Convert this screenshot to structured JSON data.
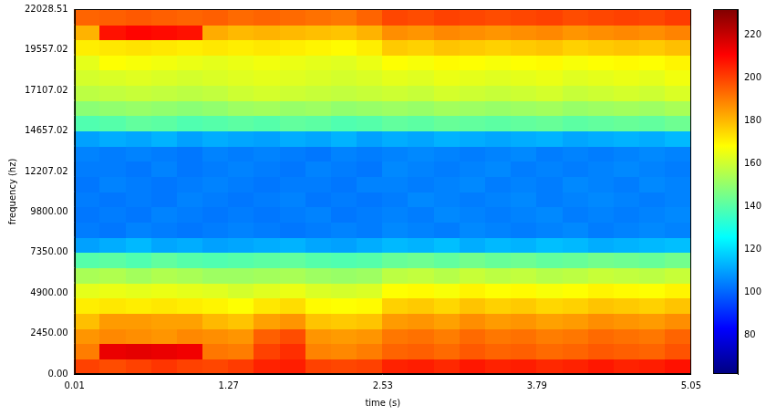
{
  "chart_data": {
    "type": "heatmap",
    "xlabel": "time (s)",
    "ylabel": "frequency (hz)",
    "xlim": [
      0.01,
      5.05
    ],
    "ylim": [
      0,
      22028.51
    ],
    "xticks": [
      0.01,
      1.27,
      2.53,
      3.79,
      5.05
    ],
    "yticks": [
      {
        "value": 0,
        "label": "0.00"
      },
      {
        "value": 2450,
        "label": "2450.00"
      },
      {
        "value": 4900,
        "label": "4900.00"
      },
      {
        "value": 7350,
        "label": "7350.00"
      },
      {
        "value": 9800,
        "label": "9800.00"
      },
      {
        "value": 12207.02,
        "label": "12207.02"
      },
      {
        "value": 14657.02,
        "label": "14657.02"
      },
      {
        "value": 17107.02,
        "label": "17107.02"
      },
      {
        "value": 19557.02,
        "label": "19557.02"
      },
      {
        "value": 22028.51,
        "label": "22028.51"
      }
    ],
    "grid": false,
    "x_bins": [
      0.01,
      0.22,
      0.43,
      0.64,
      0.85,
      1.06,
      1.27,
      1.48,
      1.69,
      1.9,
      2.11,
      2.32,
      2.53,
      2.74,
      2.95,
      3.16,
      3.37,
      3.58,
      3.79,
      4.0,
      4.21,
      4.42,
      4.63,
      4.84,
      5.05
    ],
    "y_bins": [
      0,
      918,
      1836,
      2754,
      3672,
      4590,
      5508,
      6426,
      7344,
      8262,
      9180,
      10098,
      11016,
      11934,
      12852,
      13770,
      14688,
      15606,
      16524,
      17442,
      18360,
      19278,
      20196,
      21114,
      22028.51
    ],
    "cells": [
      [
        200,
        198,
        200,
        202,
        200,
        199,
        201,
        205,
        206,
        200,
        199,
        200,
        205,
        206,
        204,
        207,
        205,
        206,
        204,
        205,
        207,
        205,
        206,
        208
      ],
      [
        190,
        214,
        215,
        214,
        213,
        191,
        190,
        200,
        203,
        189,
        188,
        190,
        194,
        195,
        193,
        196,
        194,
        195,
        193,
        194,
        196,
        195,
        194,
        197
      ],
      [
        186,
        188,
        187,
        186,
        188,
        187,
        186,
        195,
        198,
        186,
        185,
        186,
        191,
        192,
        190,
        193,
        191,
        192,
        190,
        191,
        193,
        192,
        191,
        194
      ],
      [
        179,
        185,
        185,
        184,
        184,
        180,
        178,
        184,
        186,
        178,
        177,
        178,
        185,
        186,
        184,
        187,
        185,
        186,
        184,
        185,
        187,
        186,
        185,
        187
      ],
      [
        171,
        172,
        171,
        172,
        171,
        170,
        168,
        172,
        174,
        169,
        168,
        169,
        176,
        177,
        175,
        178,
        176,
        177,
        175,
        176,
        178,
        177,
        176,
        178
      ],
      [
        164,
        165,
        164,
        165,
        164,
        163,
        161,
        163,
        165,
        162,
        161,
        162,
        168,
        169,
        167,
        170,
        168,
        169,
        167,
        168,
        170,
        169,
        168,
        170
      ],
      [
        154,
        155,
        153,
        155,
        154,
        152,
        152,
        153,
        154,
        152,
        151,
        152,
        157,
        158,
        156,
        159,
        157,
        158,
        156,
        157,
        159,
        158,
        157,
        159
      ],
      [
        140,
        141,
        139,
        142,
        140,
        139,
        140,
        141,
        142,
        140,
        139,
        140,
        143,
        144,
        142,
        145,
        143,
        144,
        142,
        143,
        145,
        144,
        143,
        145
      ],
      [
        110,
        112,
        114,
        111,
        112,
        110,
        111,
        112,
        113,
        111,
        110,
        112,
        114,
        113,
        115,
        112,
        114,
        113,
        115,
        114,
        112,
        113,
        114,
        115
      ],
      [
        104,
        103,
        105,
        104,
        103,
        104,
        105,
        104,
        103,
        104,
        105,
        104,
        106,
        105,
        104,
        106,
        105,
        104,
        105,
        106,
        104,
        105,
        106,
        105
      ],
      [
        103,
        104,
        103,
        105,
        104,
        103,
        104,
        103,
        104,
        105,
        103,
        104,
        105,
        104,
        106,
        105,
        104,
        105,
        106,
        104,
        105,
        104,
        105,
        106
      ],
      [
        104,
        103,
        104,
        103,
        105,
        104,
        103,
        104,
        105,
        103,
        104,
        103,
        104,
        106,
        105,
        104,
        105,
        106,
        104,
        105,
        106,
        105,
        104,
        105
      ],
      [
        103,
        105,
        104,
        103,
        104,
        105,
        104,
        103,
        104,
        104,
        103,
        105,
        105,
        104,
        105,
        106,
        104,
        105,
        104,
        106,
        105,
        104,
        106,
        105
      ],
      [
        104,
        104,
        103,
        105,
        103,
        104,
        105,
        104,
        103,
        105,
        104,
        103,
        106,
        105,
        104,
        105,
        106,
        104,
        105,
        104,
        105,
        106,
        105,
        104
      ],
      [
        105,
        104,
        105,
        104,
        103,
        105,
        104,
        105,
        104,
        103,
        105,
        104,
        105,
        106,
        105,
        104,
        105,
        106,
        104,
        105,
        104,
        105,
        106,
        105
      ],
      [
        110,
        112,
        111,
        113,
        110,
        112,
        111,
        110,
        112,
        111,
        113,
        110,
        112,
        111,
        113,
        112,
        111,
        112,
        113,
        111,
        112,
        113,
        112,
        114
      ],
      [
        139,
        140,
        142,
        141,
        139,
        140,
        141,
        140,
        142,
        141,
        139,
        140,
        142,
        141,
        143,
        142,
        141,
        142,
        143,
        141,
        142,
        143,
        142,
        144
      ],
      [
        149,
        150,
        151,
        150,
        149,
        150,
        152,
        153,
        151,
        152,
        150,
        151,
        152,
        151,
        153,
        152,
        151,
        152,
        153,
        151,
        152,
        153,
        152,
        154
      ],
      [
        157,
        158,
        159,
        158,
        157,
        158,
        160,
        161,
        160,
        159,
        158,
        159,
        160,
        159,
        161,
        160,
        159,
        160,
        161,
        159,
        160,
        161,
        160,
        162
      ],
      [
        161,
        162,
        163,
        162,
        161,
        162,
        163,
        164,
        163,
        162,
        161,
        162,
        164,
        163,
        165,
        164,
        163,
        164,
        165,
        163,
        164,
        165,
        164,
        166
      ],
      [
        164,
        168,
        167,
        166,
        165,
        164,
        165,
        166,
        165,
        164,
        163,
        165,
        168,
        167,
        169,
        168,
        167,
        168,
        169,
        167,
        168,
        169,
        168,
        170
      ],
      [
        171,
        172,
        173,
        172,
        171,
        172,
        171,
        172,
        171,
        170,
        169,
        171,
        177,
        176,
        178,
        177,
        176,
        177,
        178,
        176,
        177,
        178,
        177,
        179
      ],
      [
        181,
        208,
        210,
        209,
        208,
        182,
        180,
        181,
        180,
        179,
        178,
        181,
        187,
        186,
        188,
        187,
        186,
        187,
        188,
        186,
        187,
        188,
        187,
        189
      ],
      [
        194,
        195,
        196,
        195,
        194,
        195,
        193,
        194,
        193,
        192,
        191,
        194,
        199,
        198,
        200,
        199,
        198,
        199,
        200,
        198,
        199,
        200,
        199,
        201
      ]
    ],
    "colorbar": {
      "range": [
        62,
        232
      ],
      "ticks": [
        80,
        100,
        120,
        140,
        160,
        180,
        200,
        220
      ]
    }
  }
}
